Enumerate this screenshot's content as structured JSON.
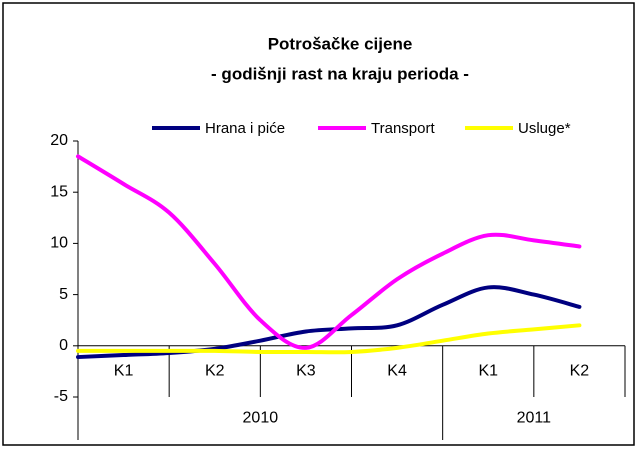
{
  "chart_data": {
    "type": "line",
    "title": "Potrošačke cijene",
    "subtitle": "- godišnji rast na kraju perioda -",
    "quarters": [
      "K1",
      "K2",
      "K3",
      "K4",
      "K1",
      "K2"
    ],
    "years": [
      {
        "label": "2010",
        "span": 4
      },
      {
        "label": "2011",
        "span": 2
      }
    ],
    "x": [
      0,
      0.5,
      1,
      1.5,
      2,
      2.5,
      3,
      3.5,
      4,
      4.5,
      5,
      5.5
    ],
    "xlim": [
      0,
      6
    ],
    "series": [
      {
        "name": "Hrana i piće",
        "color": "#000080",
        "values": [
          -1.1,
          -0.9,
          -0.7,
          -0.3,
          0.5,
          1.4,
          1.7,
          2.0,
          4.0,
          5.7,
          5.0,
          3.8
        ]
      },
      {
        "name": "Transport",
        "color": "#ff00ff",
        "values": [
          18.5,
          15.8,
          13.0,
          8.0,
          2.5,
          -0.2,
          3.0,
          6.5,
          9.0,
          10.8,
          10.3,
          9.7
        ]
      },
      {
        "name": "Usluge*",
        "color": "#ffff00",
        "values": [
          -0.5,
          -0.5,
          -0.5,
          -0.5,
          -0.6,
          -0.6,
          -0.6,
          -0.2,
          0.5,
          1.2,
          1.6,
          2.0
        ]
      }
    ],
    "ylim": [
      -5,
      20
    ],
    "yticks": [
      -5,
      0,
      5,
      10,
      15,
      20
    ]
  }
}
